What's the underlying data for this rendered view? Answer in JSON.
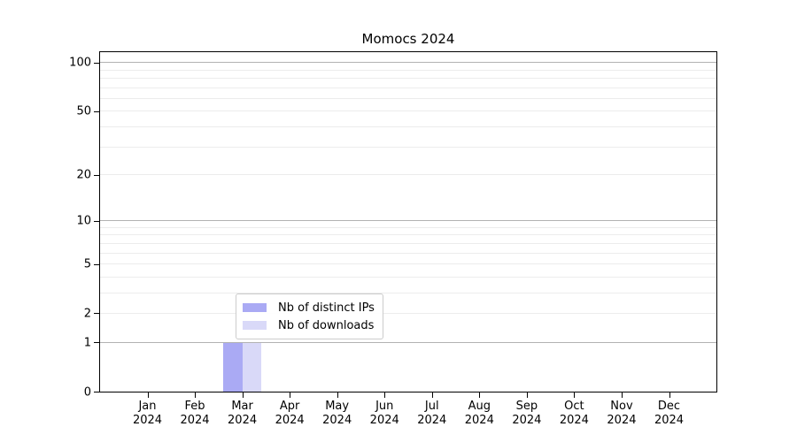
{
  "chart_data": {
    "type": "bar",
    "title": "Momocs 2024",
    "categories": [
      "Jan",
      "Feb",
      "Mar",
      "Apr",
      "May",
      "Jun",
      "Jul",
      "Aug",
      "Sep",
      "Oct",
      "Nov",
      "Dec"
    ],
    "x_tick_year": "2024",
    "series": [
      {
        "name": "Nb of distinct IPs",
        "color": "#aaaaf4",
        "values": [
          0,
          0,
          1,
          0,
          0,
          0,
          0,
          0,
          0,
          0,
          0,
          0
        ]
      },
      {
        "name": "Nb of downloads",
        "color": "#d9d9f8",
        "values": [
          0,
          0,
          1,
          0,
          0,
          0,
          0,
          0,
          0,
          0,
          0,
          0
        ]
      }
    ],
    "y_axis": {
      "scale": "log1p",
      "tick_values": [
        0,
        1,
        2,
        5,
        10,
        20,
        50,
        100
      ],
      "major_grid_values": [
        1,
        10,
        100
      ],
      "minor_grid_values": [
        2,
        3,
        4,
        5,
        6,
        7,
        8,
        9,
        20,
        30,
        40,
        50,
        60,
        70,
        80,
        90
      ],
      "ylim": [
        0,
        116
      ]
    },
    "legend": {
      "position": "lower center",
      "entries": [
        "Nb of distinct IPs",
        "Nb of downloads"
      ]
    },
    "grid": true
  },
  "colors": {
    "major_grid": "#b2b2b2",
    "minor_grid": "#ececec",
    "spine": "#000000",
    "bar_distinct_ips": "#aaaaf4",
    "bar_downloads": "#d9d9f8",
    "legend_border": "#cccccc",
    "background": "#ffffff",
    "text": "#000000"
  }
}
